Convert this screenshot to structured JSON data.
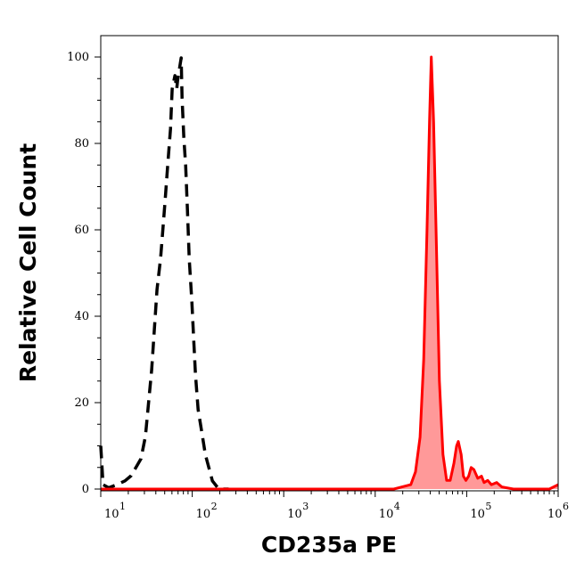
{
  "chart_data": {
    "type": "area",
    "title": "",
    "xlabel": "CD235a PE",
    "ylabel": "Relative Cell Count",
    "x_scale": "log",
    "xlim": [
      10,
      1000000
    ],
    "ylim": [
      0,
      105
    ],
    "x_ticks": [
      {
        "base": "10",
        "exp": "1"
      },
      {
        "base": "10",
        "exp": "2"
      },
      {
        "base": "10",
        "exp": "3"
      },
      {
        "base": "10",
        "exp": "4"
      },
      {
        "base": "10",
        "exp": "5"
      },
      {
        "base": "10",
        "exp": "6"
      }
    ],
    "y_ticks": [
      "0",
      "20",
      "40",
      "60",
      "80",
      "100"
    ],
    "grid": false,
    "legend": "none",
    "series": [
      {
        "style": "dashed-line",
        "color": "#000000",
        "x": [
          10,
          10.6,
          12.2,
          15,
          18.4,
          21.5,
          27.5,
          30.8,
          32.9,
          36,
          38.5,
          41.2,
          45.1,
          47.2,
          50.5,
          54,
          57.8,
          60.4,
          64.7,
          67.6,
          69.2,
          75.7,
          77.4,
          80.9,
          84.7,
          88.5,
          92.7,
          99,
          103.7,
          108.4,
          115.9,
          127,
          139,
          166,
          195,
          250
        ],
        "y": [
          10,
          1,
          0.3,
          1,
          1.9,
          3.1,
          7,
          12.2,
          18.8,
          27.6,
          36.9,
          46.2,
          53.4,
          58.6,
          66.8,
          75,
          83.3,
          92.6,
          95.7,
          92.6,
          94.6,
          99.8,
          90.5,
          81.2,
          75,
          64.7,
          53.4,
          43.3,
          34.8,
          26.6,
          18.4,
          13.2,
          8,
          1.9,
          0,
          0
        ]
      },
      {
        "style": "filled-line",
        "color": "#ff0000",
        "fill": "#ff9999",
        "x": [
          10,
          100,
          1000,
          10000,
          16000,
          24500,
          27600,
          30900,
          33900,
          36800,
          39200,
          41000,
          43500,
          46800,
          50300,
          55000,
          60400,
          66000,
          72600,
          77600,
          81000,
          87000,
          92000,
          98000,
          105000,
          112000,
          120000,
          132000,
          145000,
          155000,
          170000,
          186000,
          213000,
          242000,
          324000,
          800000,
          1000000
        ],
        "y": [
          0,
          0,
          0,
          0,
          0,
          1,
          4,
          12,
          30,
          60,
          85,
          100,
          85,
          55,
          25,
          8,
          2,
          2,
          6,
          10,
          11,
          8,
          3,
          2,
          3,
          5,
          4.5,
          2.5,
          3,
          1.5,
          2,
          1,
          1.5,
          0.5,
          0,
          0,
          1
        ]
      }
    ]
  }
}
